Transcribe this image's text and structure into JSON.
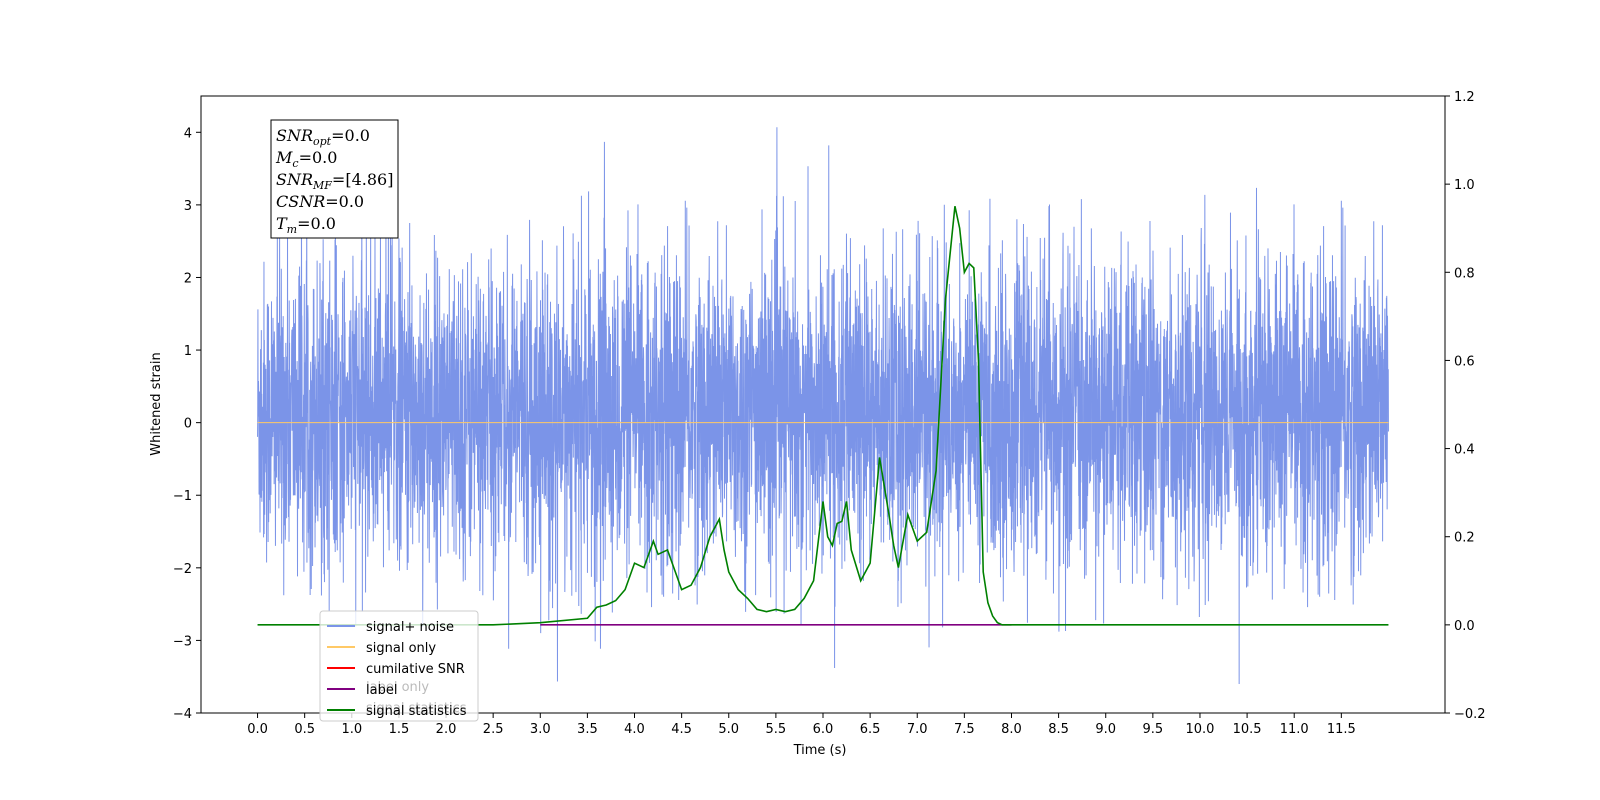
{
  "chart_data": {
    "type": "line",
    "xlabel": "Time (s)",
    "ylabel_left": "Whitened strain",
    "ylabel_right": "",
    "xlim": [
      -0.6,
      12.6
    ],
    "ylim_left": [
      -4,
      4.5
    ],
    "ylim_right": [
      -0.2,
      1.2
    ],
    "x_ticks": [
      "0.0",
      "0.5",
      "1.0",
      "1.5",
      "2.0",
      "2.5",
      "3.0",
      "3.5",
      "4.0",
      "4.5",
      "5.0",
      "5.5",
      "6.0",
      "6.5",
      "7.0",
      "7.5",
      "8.0",
      "8.5",
      "9.0",
      "9.5",
      "10.0",
      "10.5",
      "11.0",
      "11.5"
    ],
    "y_ticks_left": [
      4,
      3,
      2,
      1,
      0,
      -1,
      -2,
      -3,
      -4
    ],
    "y_ticks_left_labels": [
      "4",
      "3",
      "2",
      "1",
      "0",
      "−1",
      "−2",
      "−3",
      "−4"
    ],
    "y_ticks_right": [
      1.2,
      1.0,
      0.8,
      0.6,
      0.4,
      0.2,
      0.0,
      -0.2
    ],
    "y_ticks_right_labels": [
      "1.2",
      "1.0",
      "0.8",
      "0.6",
      "0.4",
      "0.2",
      "0.0",
      "−0.2"
    ],
    "grid": false,
    "legend_location": "lower-left",
    "legend": [
      {
        "label": "signal+ noise",
        "color": "#7b94e8"
      },
      {
        "label": "signal only",
        "color": "#ffc966"
      },
      {
        "label": "cumilative SNR",
        "color": "#ff0000"
      },
      {
        "label": "label",
        "color": "#800080"
      },
      {
        "label": "signal statistics",
        "color": "#008000"
      }
    ],
    "hidden_legend_text": [
      "label only",
      "signal statistics"
    ],
    "info_box": [
      {
        "base": "SNR",
        "sub": "opt",
        "value": "=0.0"
      },
      {
        "base": "M",
        "sub": "c",
        "value": "=0.0"
      },
      {
        "base": "SNR",
        "sub": "MF",
        "value": "=[4.86]"
      },
      {
        "base": "CSNR",
        "sub": "",
        "value": "=0.0"
      },
      {
        "base": "T",
        "sub": "m",
        "value": "=0.0"
      }
    ],
    "series": [
      {
        "name": "signal+ noise",
        "axis": "left",
        "color": "#7b94e8",
        "kind": "noise",
        "x_range": [
          0.0,
          12.0
        ],
        "band": [
          -1.75,
          2.0
        ],
        "peak_max": 4.15,
        "peak_min": -3.6
      },
      {
        "name": "signal only",
        "axis": "left",
        "color": "#ffc966",
        "x": [
          0.0,
          12.0
        ],
        "y": [
          0.0,
          0.0
        ]
      },
      {
        "name": "label",
        "axis": "right",
        "color": "#800080",
        "x": [
          3.0,
          8.0
        ],
        "y": [
          0.0,
          0.0
        ]
      },
      {
        "name": "signal statistics",
        "axis": "right",
        "color": "#008000",
        "x": [
          0.0,
          2.5,
          3.0,
          3.5,
          3.6,
          3.7,
          3.8,
          3.9,
          4.0,
          4.1,
          4.2,
          4.25,
          4.35,
          4.45,
          4.5,
          4.6,
          4.7,
          4.8,
          4.9,
          4.95,
          5.0,
          5.1,
          5.2,
          5.3,
          5.4,
          5.5,
          5.6,
          5.7,
          5.8,
          5.9,
          6.0,
          6.05,
          6.1,
          6.15,
          6.2,
          6.25,
          6.3,
          6.4,
          6.5,
          6.6,
          6.7,
          6.75,
          6.8,
          6.9,
          7.0,
          7.1,
          7.2,
          7.3,
          7.4,
          7.45,
          7.5,
          7.55,
          7.6,
          7.65,
          7.7,
          7.75,
          7.8,
          7.85,
          7.9,
          8.0,
          8.5,
          9.0,
          10.0,
          11.0,
          12.0
        ],
        "y": [
          0.0,
          0.0,
          0.005,
          0.015,
          0.04,
          0.045,
          0.055,
          0.08,
          0.14,
          0.13,
          0.19,
          0.16,
          0.17,
          0.11,
          0.08,
          0.09,
          0.13,
          0.2,
          0.24,
          0.17,
          0.12,
          0.08,
          0.06,
          0.035,
          0.03,
          0.035,
          0.03,
          0.035,
          0.06,
          0.1,
          0.28,
          0.2,
          0.18,
          0.23,
          0.235,
          0.28,
          0.17,
          0.1,
          0.14,
          0.38,
          0.25,
          0.18,
          0.13,
          0.25,
          0.19,
          0.21,
          0.35,
          0.74,
          0.95,
          0.9,
          0.8,
          0.82,
          0.81,
          0.6,
          0.12,
          0.05,
          0.02,
          0.005,
          0.0,
          0.0,
          0.0,
          0.0,
          0.0,
          0.0,
          0.0
        ]
      }
    ]
  }
}
